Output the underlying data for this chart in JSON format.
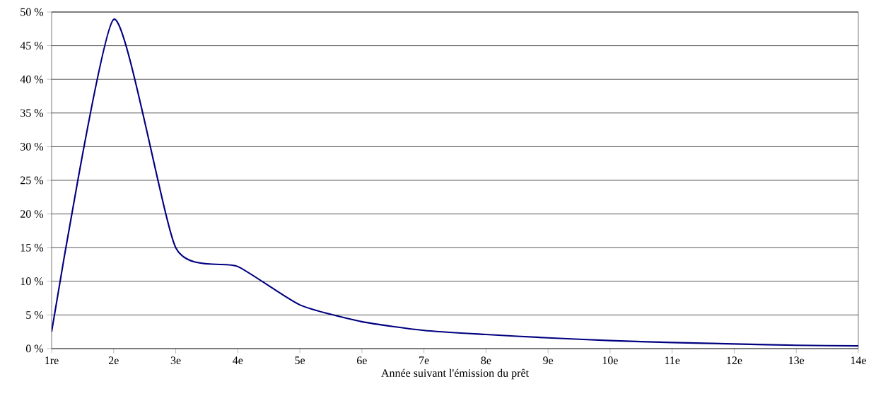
{
  "chart_data": {
    "type": "line",
    "xlabel": "Année suivant l'émission du prêt",
    "categories": [
      "1re",
      "2e",
      "3e",
      "4e",
      "5e",
      "6e",
      "7e",
      "8e",
      "9e",
      "10e",
      "11e",
      "12e",
      "13e",
      "14e"
    ],
    "series": [
      {
        "color": "#000080",
        "values": [
          2.5,
          48.9,
          15,
          12.2,
          6.5,
          4.0,
          2.7,
          2.1,
          1.6,
          1.2,
          0.9,
          0.7,
          0.5,
          0.4
        ]
      }
    ],
    "ylim": [
      0,
      50
    ],
    "yticks": [
      {
        "value": 0,
        "label": "0 %"
      },
      {
        "value": 5,
        "label": "5 %"
      },
      {
        "value": 10,
        "label": "10 %"
      },
      {
        "value": 15,
        "label": "15 %"
      },
      {
        "value": 20,
        "label": "20 %"
      },
      {
        "value": 25,
        "label": "25 %"
      },
      {
        "value": 30,
        "label": "30 %"
      },
      {
        "value": 35,
        "label": "35 %"
      },
      {
        "value": 40,
        "label": "40 %"
      },
      {
        "value": 45,
        "label": "45 %"
      },
      {
        "value": 50,
        "label": "50 %"
      }
    ],
    "grid": "y",
    "marker": "none",
    "line_style": "solid"
  }
}
